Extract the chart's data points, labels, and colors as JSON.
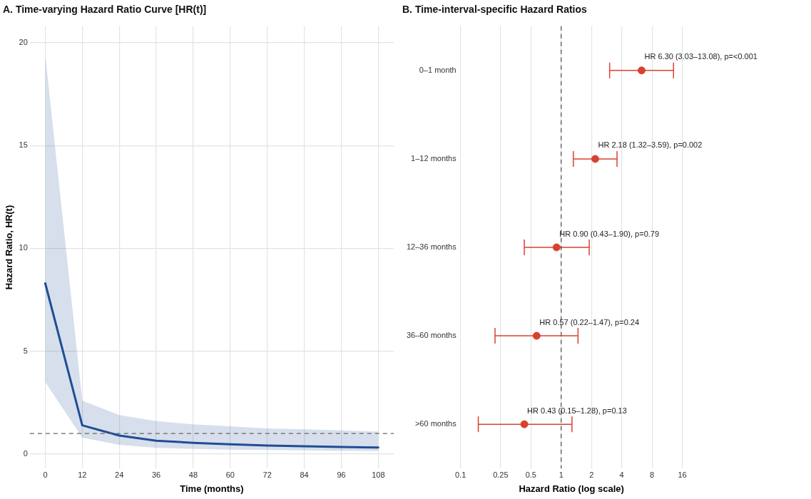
{
  "chart_data": [
    {
      "type": "line",
      "title": "A. Time-varying Hazard Ratio Curve [HR(t)]",
      "xlabel": "Time (months)",
      "ylabel": "Hazard Ratio, HR(t)",
      "x": [
        0,
        12,
        24,
        36,
        48,
        60,
        72,
        84,
        96,
        108
      ],
      "series": [
        {
          "color": "#1f4e96",
          "values": [
            8.3,
            1.4,
            0.9,
            0.65,
            0.55,
            0.48,
            0.42,
            0.38,
            0.35,
            0.32
          ],
          "lower": [
            3.5,
            0.8,
            0.45,
            0.3,
            0.25,
            0.22,
            0.2,
            0.18,
            0.16,
            0.15
          ],
          "upper": [
            19.4,
            2.6,
            1.9,
            1.6,
            1.45,
            1.35,
            1.25,
            1.2,
            1.15,
            1.1
          ]
        }
      ],
      "xlim": [
        -5,
        113
      ],
      "xticks": [
        0,
        12,
        24,
        36,
        48,
        60,
        72,
        84,
        96,
        108
      ],
      "ylim": [
        -0.7,
        20.8
      ],
      "yticks": [
        0,
        5,
        10,
        15,
        20
      ],
      "ref_lines": [
        {
          "axis": "y",
          "value": 1,
          "color": "#666666",
          "line_style": "dashed"
        }
      ],
      "grid": true,
      "legend": false,
      "marker": "none",
      "line_style": "solid"
    },
    {
      "type": "scatter",
      "orientation": "horizontal",
      "title": "B. Time-interval-specific Hazard Ratios",
      "xlabel": "Hazard Ratio (log scale)",
      "categories": [
        "0–1 month",
        "1–12 months",
        "12–36 months",
        "36–60 months",
        ">60 months"
      ],
      "color": "#d9412f",
      "values": [
        6.3,
        2.18,
        0.9,
        0.57,
        0.43
      ],
      "errors": [
        [
          3.03,
          13.08
        ],
        [
          1.32,
          3.59
        ],
        [
          0.43,
          1.9
        ],
        [
          0.22,
          1.47
        ],
        [
          0.15,
          1.28
        ]
      ],
      "value_labels": [
        "HR 6.30 (3.03–13.08), p=<0.001",
        "HR 2.18 (1.32–3.59), p=0.002",
        "HR 0.90 (0.43–1.90), p=0.79",
        "HR 0.57 (0.22–1.47), p=0.24",
        "HR 0.43 (0.15–1.28), p=0.13"
      ],
      "log": "x",
      "xlim": [
        0.1,
        16
      ],
      "xticks": [
        0.1,
        0.25,
        0.5,
        1,
        2,
        4,
        8,
        16
      ],
      "ref_lines": [
        {
          "axis": "x",
          "value": 1,
          "color": "#555555",
          "line_style": "dashed"
        }
      ],
      "grid": "x",
      "legend": false,
      "marker": "circle"
    }
  ]
}
